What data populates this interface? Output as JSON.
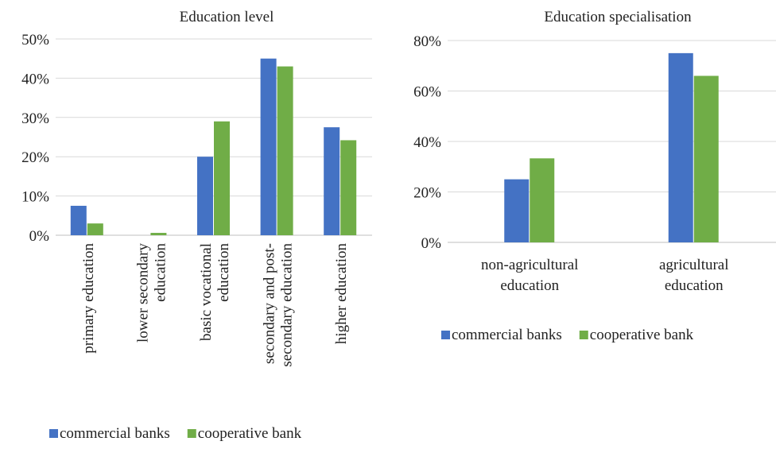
{
  "chart_data": [
    {
      "type": "bar",
      "title": "Education level",
      "categories": [
        [
          "primary education"
        ],
        [
          "lower secondary",
          "education"
        ],
        [
          "basic vocational",
          "education"
        ],
        [
          "secondary and post-",
          "secondary education"
        ],
        [
          "higher education"
        ]
      ],
      "series": [
        {
          "name": "commercial banks",
          "values": [
            7.5,
            0,
            20,
            45,
            27.5
          ]
        },
        {
          "name": "cooperative bank",
          "values": [
            3,
            0.6,
            29,
            43,
            24.2
          ]
        }
      ],
      "y_ticks": [
        "0%",
        "10%",
        "20%",
        "30%",
        "40%",
        "50%"
      ],
      "ylim": [
        0,
        50
      ],
      "y_unit": "%",
      "grid": true,
      "legend": "bottom"
    },
    {
      "type": "bar",
      "title": "Education specialisation",
      "categories": [
        [
          "non-agricultural",
          "education"
        ],
        [
          "agricultural",
          "education"
        ]
      ],
      "series": [
        {
          "name": "commercial banks",
          "values": [
            25,
            75
          ]
        },
        {
          "name": "cooperative bank",
          "values": [
            33.3,
            66
          ]
        }
      ],
      "y_ticks": [
        "0%",
        "20%",
        "40%",
        "60%",
        "80%"
      ],
      "ylim": [
        0,
        80
      ],
      "y_unit": "%",
      "grid": true,
      "legend": "bottom"
    }
  ],
  "colors": {
    "commercial_banks": "#4472C4",
    "cooperative_bank": "#70AD47",
    "grid": "#d9d9d9",
    "axis": "#bfbfbf"
  }
}
